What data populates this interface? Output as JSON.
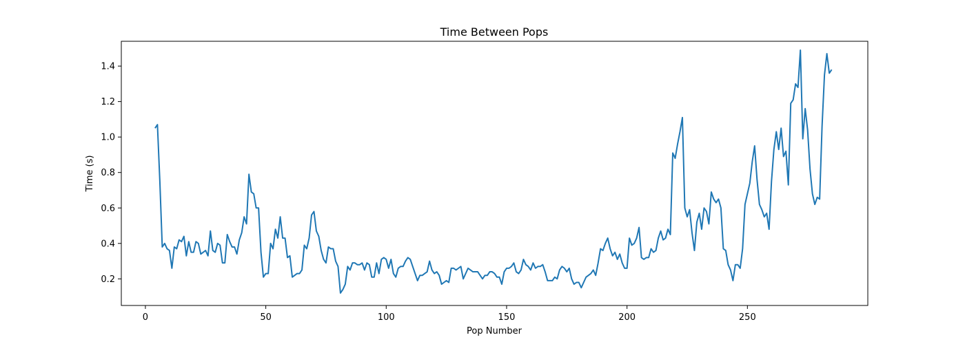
{
  "chart_data": {
    "type": "line",
    "title": "Time Between Pops",
    "xlabel": "Pop Number",
    "ylabel": "Time (s)",
    "xlim": [
      -10,
      300
    ],
    "ylim": [
      0.05,
      1.54
    ],
    "xticks": [
      0,
      50,
      100,
      150,
      200,
      250
    ],
    "yticks": [
      0.2,
      0.4,
      0.6,
      0.8,
      1.0,
      1.2,
      1.4
    ],
    "ytick_labels": [
      "0.2",
      "0.4",
      "0.6",
      "0.8",
      "1.0",
      "1.2",
      "1.4"
    ],
    "grid": false,
    "series": [
      {
        "color": "#1f77b4",
        "x_start": 4,
        "values": [
          1.05,
          1.07,
          0.75,
          0.38,
          0.4,
          0.37,
          0.36,
          0.26,
          0.38,
          0.37,
          0.42,
          0.41,
          0.44,
          0.33,
          0.41,
          0.35,
          0.35,
          0.41,
          0.4,
          0.34,
          0.35,
          0.36,
          0.33,
          0.47,
          0.36,
          0.35,
          0.4,
          0.39,
          0.29,
          0.29,
          0.45,
          0.41,
          0.38,
          0.38,
          0.34,
          0.42,
          0.46,
          0.55,
          0.51,
          0.79,
          0.69,
          0.68,
          0.6,
          0.6,
          0.35,
          0.21,
          0.23,
          0.23,
          0.4,
          0.37,
          0.48,
          0.43,
          0.55,
          0.43,
          0.43,
          0.32,
          0.33,
          0.21,
          0.22,
          0.23,
          0.23,
          0.25,
          0.39,
          0.37,
          0.43,
          0.56,
          0.58,
          0.47,
          0.44,
          0.36,
          0.31,
          0.29,
          0.38,
          0.37,
          0.37,
          0.3,
          0.27,
          0.12,
          0.14,
          0.17,
          0.27,
          0.25,
          0.29,
          0.29,
          0.28,
          0.28,
          0.29,
          0.25,
          0.29,
          0.28,
          0.21,
          0.21,
          0.29,
          0.23,
          0.31,
          0.32,
          0.31,
          0.26,
          0.31,
          0.23,
          0.21,
          0.26,
          0.27,
          0.27,
          0.3,
          0.32,
          0.31,
          0.27,
          0.23,
          0.19,
          0.22,
          0.22,
          0.23,
          0.24,
          0.3,
          0.25,
          0.23,
          0.24,
          0.22,
          0.17,
          0.18,
          0.19,
          0.18,
          0.26,
          0.26,
          0.25,
          0.26,
          0.27,
          0.2,
          0.23,
          0.26,
          0.25,
          0.24,
          0.24,
          0.24,
          0.22,
          0.2,
          0.22,
          0.22,
          0.24,
          0.24,
          0.23,
          0.21,
          0.21,
          0.17,
          0.24,
          0.26,
          0.26,
          0.27,
          0.29,
          0.24,
          0.23,
          0.25,
          0.31,
          0.28,
          0.27,
          0.25,
          0.29,
          0.26,
          0.27,
          0.27,
          0.28,
          0.24,
          0.19,
          0.19,
          0.19,
          0.21,
          0.2,
          0.25,
          0.27,
          0.26,
          0.24,
          0.26,
          0.2,
          0.17,
          0.18,
          0.18,
          0.15,
          0.18,
          0.21,
          0.22,
          0.23,
          0.25,
          0.22,
          0.29,
          0.37,
          0.36,
          0.4,
          0.43,
          0.37,
          0.33,
          0.35,
          0.31,
          0.34,
          0.29,
          0.26,
          0.26,
          0.43,
          0.39,
          0.4,
          0.43,
          0.49,
          0.32,
          0.31,
          0.32,
          0.32,
          0.37,
          0.35,
          0.36,
          0.43,
          0.47,
          0.42,
          0.43,
          0.48,
          0.45,
          0.91,
          0.88,
          0.96,
          1.03,
          1.11,
          0.6,
          0.55,
          0.59,
          0.46,
          0.36,
          0.52,
          0.57,
          0.48,
          0.6,
          0.58,
          0.51,
          0.69,
          0.65,
          0.63,
          0.65,
          0.6,
          0.37,
          0.36,
          0.28,
          0.25,
          0.19,
          0.28,
          0.28,
          0.26,
          0.37,
          0.62,
          0.68,
          0.74,
          0.86,
          0.95,
          0.76,
          0.62,
          0.59,
          0.55,
          0.57,
          0.48,
          0.75,
          0.93,
          1.03,
          0.93,
          1.05,
          0.89,
          0.92,
          0.73,
          1.19,
          1.21,
          1.3,
          1.28,
          1.49,
          0.99,
          1.16,
          1.04,
          0.82,
          0.68,
          0.62,
          0.66,
          0.65,
          1.06,
          1.35,
          1.47,
          1.36,
          1.38
        ]
      }
    ]
  }
}
